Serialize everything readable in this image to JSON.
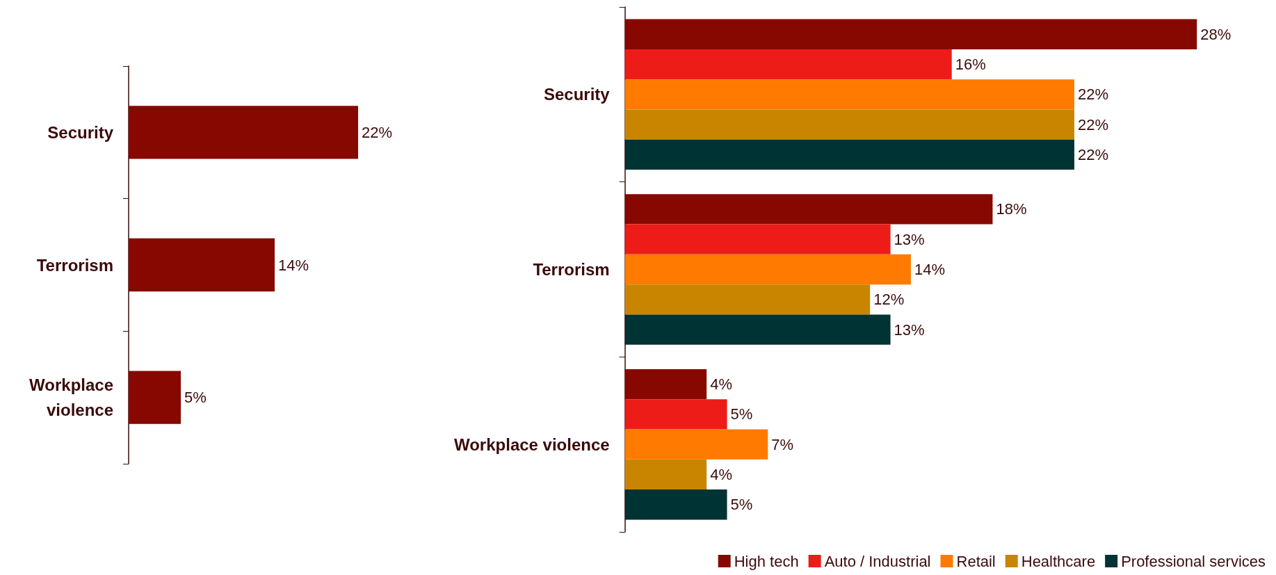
{
  "chart_data": [
    {
      "type": "bar",
      "orientation": "horizontal",
      "categories": [
        "Security",
        "Terrorism",
        "Workplace\nviolence"
      ],
      "values": [
        22,
        14,
        5
      ],
      "value_labels": [
        "22%",
        "14%",
        "5%"
      ],
      "color": "#870800"
    },
    {
      "type": "bar",
      "orientation": "horizontal",
      "categories": [
        "Security",
        "Terrorism",
        "Workplace violence"
      ],
      "legend": "bottom right",
      "series": [
        {
          "name": "High tech",
          "color": "#870800",
          "values": [
            28,
            18,
            4
          ],
          "value_labels": [
            "28%",
            "18%",
            "4%"
          ]
        },
        {
          "name": "Auto / Industrial",
          "color": "#ee1c18",
          "values": [
            16,
            13,
            5
          ],
          "value_labels": [
            "16%",
            "13%",
            "5%"
          ]
        },
        {
          "name": "Retail",
          "color": "#ff7a00",
          "values": [
            22,
            14,
            7
          ],
          "value_labels": [
            "22%",
            "14%",
            "7%"
          ]
        },
        {
          "name": "Healthcare",
          "color": "#c98500",
          "values": [
            22,
            12,
            4
          ],
          "value_labels": [
            "22%",
            "12%",
            "4%"
          ]
        },
        {
          "name": "Professional services",
          "color": "#003333",
          "values": [
            22,
            13,
            5
          ],
          "value_labels": [
            "22%",
            "13%",
            "5%"
          ]
        }
      ]
    }
  ]
}
